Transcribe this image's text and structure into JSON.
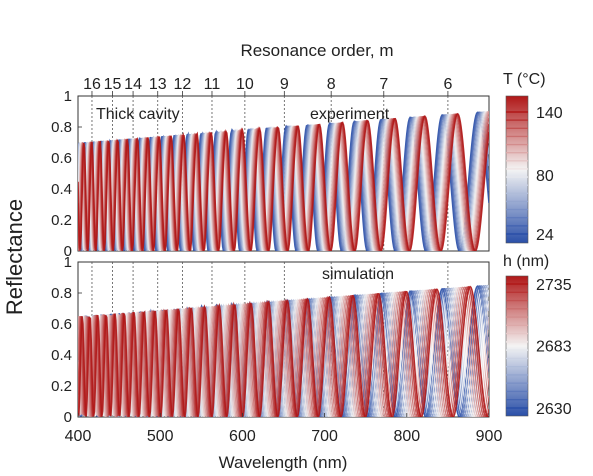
{
  "chart_data": [
    {
      "type": "line",
      "label": "experiment",
      "annotation_left": "Thick cavity",
      "ylabel": "Reflectance",
      "ylim": [
        0,
        1
      ],
      "yticks": [
        0,
        0.2,
        0.4,
        0.6,
        0.8,
        1
      ],
      "xlim": [
        400,
        900
      ],
      "top_axis_label": "Resonance order, m",
      "orders": [
        {
          "m": "16",
          "wavelength": 417
        },
        {
          "m": "15",
          "wavelength": 442
        },
        {
          "m": "14",
          "wavelength": 467
        },
        {
          "m": "13",
          "wavelength": 497
        },
        {
          "m": "12",
          "wavelength": 527
        },
        {
          "m": "11",
          "wavelength": 563
        },
        {
          "m": "10",
          "wavelength": 603
        },
        {
          "m": "9",
          "wavelength": 651
        },
        {
          "m": "8",
          "wavelength": 708
        },
        {
          "m": "7",
          "wavelength": 772
        },
        {
          "m": "6",
          "wavelength": 850
        }
      ],
      "colorbar": {
        "title": "T (°C)",
        "min": 24,
        "max": 140,
        "ticks": [
          "140",
          "80",
          "24"
        ],
        "ticks_values": [
          140,
          80,
          24
        ]
      },
      "series_note": "one trace per temperature step from 24 to 140 °C; peaks red-shift with temperature",
      "peak_reflectance": {
        "short_wavelength": 0.7,
        "long_wavelength": 0.9
      },
      "trough_reflectance": 0.0
    },
    {
      "type": "line",
      "label": "simulation",
      "ylabel": "Reflectance",
      "xlabel": "Wavelength (nm)",
      "ylim": [
        0,
        1
      ],
      "yticks": [
        0,
        0.2,
        0.4,
        0.6,
        0.8,
        1
      ],
      "xlim": [
        400,
        900
      ],
      "xticks": [
        400,
        500,
        600,
        700,
        800,
        900
      ],
      "colorbar": {
        "title": "h (nm)",
        "min": 2630,
        "max": 2735,
        "ticks": [
          "2735",
          "2683",
          "2630"
        ],
        "ticks_values": [
          2735,
          2683,
          2630
        ]
      },
      "series_note": "one trace per cavity thickness from 2630 to 2735 nm; peaks red-shift with thickness",
      "peak_reflectance": {
        "short_wavelength": 0.65,
        "long_wavelength": 0.85
      },
      "trough_reflectance": 0.0
    }
  ],
  "colors": {
    "cold": "#2a4fa8",
    "mid": "#f2f2f2",
    "hot": "#b01818",
    "guide": "#555555"
  }
}
